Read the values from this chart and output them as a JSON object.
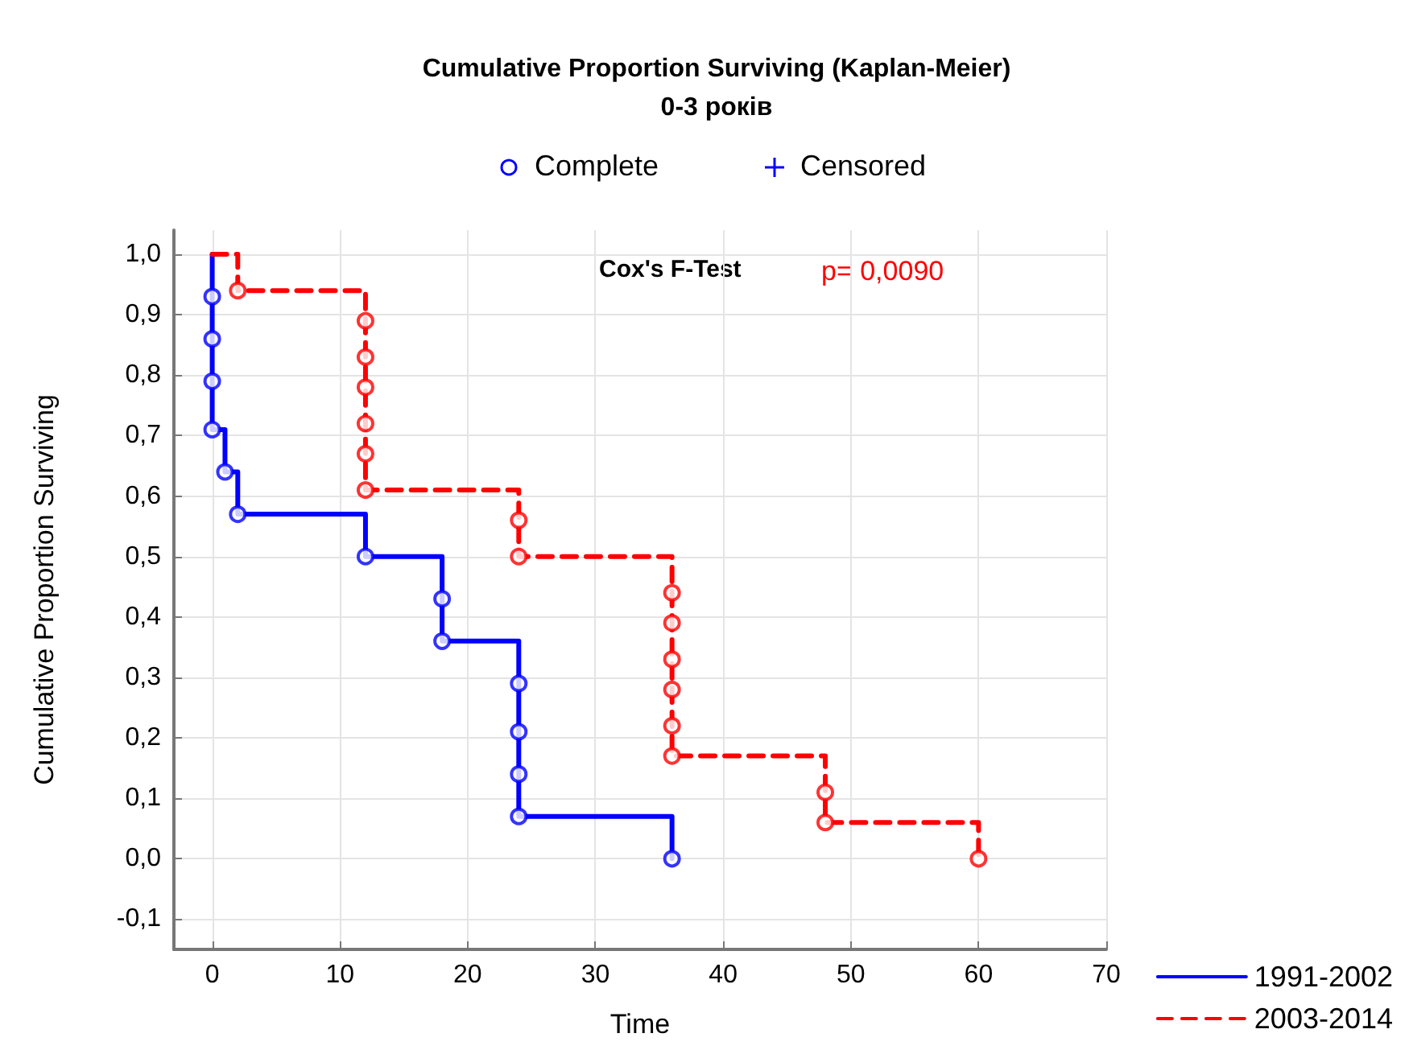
{
  "chart_data": {
    "type": "step",
    "title": "Cumulative Proportion Surviving (Kaplan-Meier)",
    "subtitle": "0-3 років",
    "xlabel": "Time",
    "ylabel": "Cumulative Proportion Surviving",
    "annotations": [
      "Cox's F-Test",
      "p= 0,0090"
    ],
    "series": [
      {
        "name": "1991-2002",
        "color": "#0000ff",
        "line_style": "solid",
        "x": [
          0,
          0,
          1,
          2,
          12,
          18,
          24,
          36
        ],
        "values": [
          1,
          0.71,
          0.64,
          0.57,
          0.5,
          0.36,
          0.07,
          0
        ]
      },
      {
        "name": "2003-2014",
        "color": "#ff0000",
        "line_style": "dashed",
        "x": [
          0,
          2,
          12,
          24,
          36,
          48,
          60
        ],
        "values": [
          1,
          0.94,
          0.61,
          0.5,
          0.17,
          0.06,
          0
        ]
      },
      {
        "name": "Complete",
        "type": "scatter",
        "marker": "circle",
        "color": "#0000ff",
        "x": [
          0,
          0,
          0,
          0,
          1,
          2,
          12,
          18,
          18,
          24,
          24,
          24,
          24,
          36,
          2,
          12,
          12,
          12,
          12,
          12,
          12,
          24,
          24,
          36,
          36,
          36,
          36,
          36,
          36,
          48,
          48,
          60
        ],
        "values": [
          0.93,
          0.86,
          0.79,
          0.71,
          0.64,
          0.57,
          0.5,
          0.43,
          0.36,
          0.29,
          0.21,
          0.14,
          0.07,
          0,
          0.94,
          0.89,
          0.83,
          0.78,
          0.72,
          0.67,
          0.61,
          0.56,
          0.5,
          0.44,
          0.39,
          0.33,
          0.28,
          0.22,
          0.17,
          0.11,
          0.06,
          0
        ],
        "colors": [
          "#0000ff",
          "#0000ff",
          "#0000ff",
          "#0000ff",
          "#0000ff",
          "#0000ff",
          "#0000ff",
          "#0000ff",
          "#0000ff",
          "#0000ff",
          "#0000ff",
          "#0000ff",
          "#0000ff",
          "#0000ff",
          "#ff0000",
          "#ff0000",
          "#ff0000",
          "#ff0000",
          "#ff0000",
          "#ff0000",
          "#ff0000",
          "#ff0000",
          "#ff0000",
          "#ff0000",
          "#ff0000",
          "#ff0000",
          "#ff0000",
          "#ff0000",
          "#ff0000",
          "#ff0000",
          "#ff0000",
          "#ff0000"
        ]
      },
      {
        "name": "Censored",
        "type": "scatter",
        "marker": "cross",
        "color": "#0000ff"
      }
    ],
    "xlim": [
      -3,
      70
    ],
    "xticks": [
      0,
      10,
      20,
      30,
      40,
      50,
      60,
      70
    ],
    "ylim": [
      -0.15,
      1.04
    ],
    "yticks": [
      {
        "value": -0.1,
        "label": "-0,1"
      },
      {
        "value": 0,
        "label": "0,0"
      },
      {
        "value": 0.1,
        "label": "0,1"
      },
      {
        "value": 0.2,
        "label": "0,2"
      },
      {
        "value": 0.3,
        "label": "0,3"
      },
      {
        "value": 0.4,
        "label": "0,4"
      },
      {
        "value": 0.5,
        "label": "0,5"
      },
      {
        "value": 0.6,
        "label": "0,6"
      },
      {
        "value": 0.7,
        "label": "0,7"
      },
      {
        "value": 0.8,
        "label": "0,8"
      },
      {
        "value": 0.9,
        "label": "0,9"
      },
      {
        "value": 1.0,
        "label": "1,0"
      }
    ],
    "grid": true,
    "legend": "bottom right"
  }
}
